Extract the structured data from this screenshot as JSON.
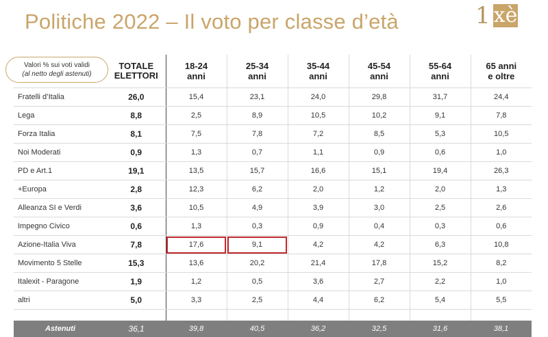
{
  "title": "Politiche 2022 – Il voto per classe d’età",
  "logo": {
    "num": "1",
    "letters": "xè"
  },
  "legend": {
    "line1": "Valori % sui voti validi",
    "line2": "(al netto degli astenuti)"
  },
  "colors": {
    "gold": "#c9a56a",
    "highlight": "#c0282d",
    "absent_bg": "#7f7f7f"
  },
  "chart_data": {
    "type": "table",
    "title": "Politiche 2022 – Il voto per classe d’età",
    "columns": [
      "TOTALE ELETTORI",
      "18-24 anni",
      "25-34 anni",
      "35-44 anni",
      "45-54 anni",
      "55-64 anni",
      "65 anni e oltre"
    ],
    "header": {
      "tot": [
        "TOTALE",
        "ELETTORI"
      ],
      "ages": [
        [
          "18-24",
          "anni"
        ],
        [
          "25-34",
          "anni"
        ],
        [
          "35-44",
          "anni"
        ],
        [
          "45-54",
          "anni"
        ],
        [
          "55-64",
          "anni"
        ],
        [
          "65 anni",
          "e oltre"
        ]
      ]
    },
    "rows": [
      {
        "party": "Fratelli d’Italia",
        "values": [
          "26,0",
          "15,4",
          "23,1",
          "24,0",
          "29,8",
          "31,7",
          "24,4"
        ]
      },
      {
        "party": "Lega",
        "values": [
          "8,8",
          "2,5",
          "8,9",
          "10,5",
          "10,2",
          "9,1",
          "7,8"
        ]
      },
      {
        "party": "Forza Italia",
        "values": [
          "8,1",
          "7,5",
          "7,8",
          "7,2",
          "8,5",
          "5,3",
          "10,5"
        ]
      },
      {
        "party": "Noi Moderati",
        "values": [
          "0,9",
          "1,3",
          "0,7",
          "1,1",
          "0,9",
          "0,6",
          "1,0"
        ]
      },
      {
        "party": "PD e Art.1",
        "values": [
          "19,1",
          "13,5",
          "15,7",
          "16,6",
          "15,1",
          "19,4",
          "26,3"
        ]
      },
      {
        "party": "+Europa",
        "values": [
          "2,8",
          "12,3",
          "6,2",
          "2,0",
          "1,2",
          "2,0",
          "1,3"
        ]
      },
      {
        "party": "Alleanza SI e Verdi",
        "values": [
          "3,6",
          "10,5",
          "4,9",
          "3,9",
          "3,0",
          "2,5",
          "2,6"
        ]
      },
      {
        "party": "Impegno Civico",
        "values": [
          "0,6",
          "1,3",
          "0,3",
          "0,9",
          "0,4",
          "0,3",
          "0,6"
        ]
      },
      {
        "party": "Azione-Italia Viva",
        "values": [
          "7,8",
          "17,6",
          "9,1",
          "4,2",
          "4,2",
          "6,3",
          "10,8"
        ]
      },
      {
        "party": "Movimento 5 Stelle",
        "values": [
          "15,3",
          "13,6",
          "20,2",
          "21,4",
          "17,8",
          "15,2",
          "8,2"
        ]
      },
      {
        "party": "Italexit - Paragone",
        "values": [
          "1,9",
          "1,2",
          "0,5",
          "3,6",
          "2,7",
          "2,2",
          "1,0"
        ]
      },
      {
        "party": "altri",
        "values": [
          "5,0",
          "3,3",
          "2,5",
          "4,4",
          "6,2",
          "5,4",
          "5,5"
        ]
      }
    ],
    "absent": {
      "label": "Astenuti",
      "values": [
        "36,1",
        "39,8",
        "40,5",
        "36,2",
        "32,5",
        "31,6",
        "38,1"
      ]
    },
    "highlighted_cells": [
      {
        "row": "Azione-Italia Viva",
        "column": "18-24 anni"
      },
      {
        "row": "Azione-Italia Viva",
        "column": "25-34 anni"
      }
    ]
  }
}
